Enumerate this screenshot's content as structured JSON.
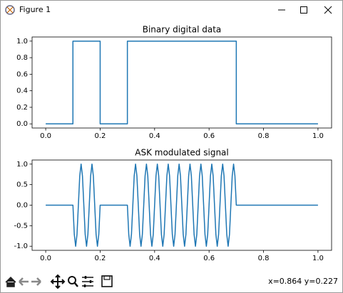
{
  "window": {
    "title": "Figure 1",
    "status": "x=0.864 y=0.227"
  },
  "chart_data": [
    {
      "type": "line",
      "title": "Binary digital data",
      "x": [
        0,
        0.1,
        0.1,
        0.2,
        0.2,
        0.3,
        0.3,
        0.7,
        0.7,
        1.0
      ],
      "values": [
        0,
        0,
        1,
        1,
        0,
        0,
        1,
        1,
        0,
        0
      ],
      "color": "#1f77b4",
      "xlim": [
        -0.05,
        1.05
      ],
      "xticks": [
        {
          "value": 0,
          "label": "0.0"
        },
        0.2,
        0.4,
        0.6,
        0.8,
        {
          "value": 1,
          "label": "1.0"
        }
      ],
      "ylim": [
        -0.05,
        1.05
      ],
      "yticks": [
        {
          "value": 0,
          "label": "0.0"
        },
        0.2,
        0.4,
        0.6,
        0.8,
        {
          "value": 1,
          "label": "1.0"
        }
      ]
    },
    {
      "type": "line",
      "title": "ASK modulated signal",
      "x": [
        0,
        0.1,
        0.105,
        0.11,
        0.115,
        0.12,
        0.125,
        0.13,
        0.135,
        0.14,
        0.145,
        0.15,
        0.155,
        0.16,
        0.165,
        0.17,
        0.175,
        0.18,
        0.185,
        0.19,
        0.195,
        0.2,
        0.3,
        0.305,
        0.31,
        0.315,
        0.32,
        0.325,
        0.33,
        0.335,
        0.34,
        0.345,
        0.35,
        0.355,
        0.36,
        0.365,
        0.37,
        0.375,
        0.38,
        0.385,
        0.39,
        0.395,
        0.4,
        0.405,
        0.41,
        0.415,
        0.42,
        0.425,
        0.43,
        0.435,
        0.44,
        0.445,
        0.45,
        0.455,
        0.46,
        0.465,
        0.47,
        0.475,
        0.48,
        0.485,
        0.49,
        0.495,
        0.5,
        0.505,
        0.51,
        0.515,
        0.52,
        0.525,
        0.53,
        0.535,
        0.54,
        0.545,
        0.55,
        0.555,
        0.56,
        0.565,
        0.57,
        0.575,
        0.58,
        0.585,
        0.59,
        0.595,
        0.6,
        0.605,
        0.61,
        0.615,
        0.62,
        0.625,
        0.63,
        0.635,
        0.64,
        0.645,
        0.65,
        0.655,
        0.66,
        0.665,
        0.67,
        0.675,
        0.68,
        0.685,
        0.69,
        0.695,
        0.7,
        1.0
      ],
      "values": [
        0,
        0,
        -0.71,
        -1,
        -0.71,
        0,
        0.71,
        1,
        0.71,
        0,
        -0.71,
        -1,
        -0.71,
        0,
        0.71,
        1,
        0.71,
        0,
        -0.71,
        -1,
        -0.71,
        0,
        0,
        -0.71,
        -1,
        -0.71,
        0,
        0.71,
        1,
        0.71,
        0,
        -0.71,
        -1,
        -0.71,
        0,
        0.71,
        1,
        0.71,
        0,
        -0.71,
        -1,
        -0.71,
        0,
        0.71,
        1,
        0.71,
        0,
        -0.71,
        -1,
        -0.71,
        0,
        0.71,
        1,
        0.71,
        0,
        -0.71,
        -1,
        -0.71,
        0,
        0.71,
        1,
        0.71,
        0,
        -0.71,
        -1,
        -0.71,
        0,
        0.71,
        1,
        0.71,
        0,
        -0.71,
        -1,
        -0.71,
        0,
        0.71,
        1,
        0.71,
        0,
        -0.71,
        -1,
        -0.71,
        0,
        0.71,
        1,
        0.71,
        0,
        -0.71,
        -1,
        -0.71,
        0,
        0.71,
        1,
        0.71,
        0,
        -0.71,
        -1,
        -0.71,
        0,
        0.71,
        1,
        0.71,
        0,
        0
      ],
      "color": "#1f77b4",
      "xlim": [
        -0.05,
        1.05
      ],
      "xticks": [
        {
          "value": 0,
          "label": "0.0"
        },
        0.2,
        0.4,
        0.6,
        0.8,
        {
          "value": 1,
          "label": "1.0"
        }
      ],
      "ylim": [
        -1.1,
        1.1
      ],
      "yticks": [
        {
          "value": -1,
          "label": "-1.0"
        },
        -0.5,
        {
          "value": 0,
          "label": "0.0"
        },
        0.5,
        {
          "value": 1,
          "label": "1.0"
        }
      ]
    }
  ]
}
